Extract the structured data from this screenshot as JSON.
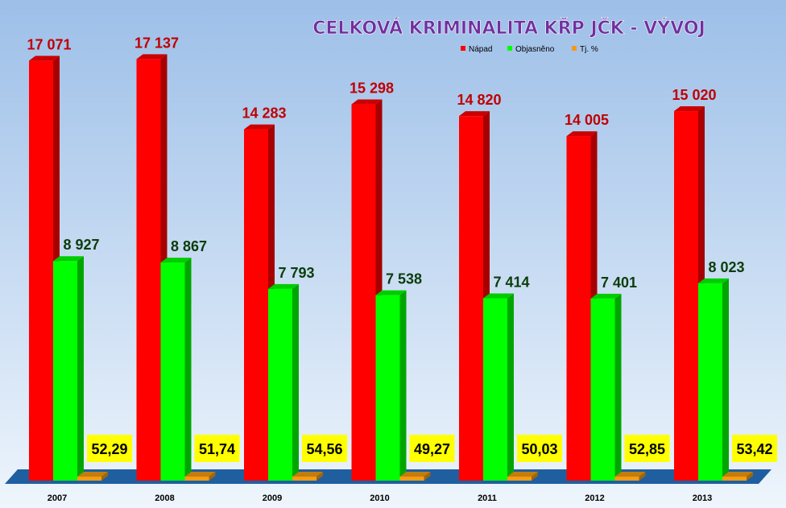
{
  "chart_data": {
    "type": "bar",
    "title": "CELKOVÁ KRIMINALITA KŘP JČK - VÝVOJ",
    "categories": [
      "2007",
      "2008",
      "2009",
      "2010",
      "2011",
      "2012",
      "2013"
    ],
    "series": [
      {
        "name": "Nápad",
        "values": [
          17071,
          17137,
          14283,
          15298,
          14820,
          14005,
          15020
        ],
        "labels": [
          "17 071",
          "17 137",
          "14 283",
          "15 298",
          "14 820",
          "14 005",
          "15 020"
        ],
        "color": "#ff0000",
        "label_color": "#c00000"
      },
      {
        "name": "Objasněno",
        "values": [
          8927,
          8867,
          7793,
          7538,
          7414,
          7401,
          8023
        ],
        "labels": [
          "8 927",
          "8 867",
          "7 793",
          "7 538",
          "7 414",
          "7 401",
          "8 023"
        ],
        "color": "#00ff00",
        "label_color": "#0b3d0b"
      },
      {
        "name": "Tj. %",
        "values": [
          52.29,
          51.74,
          54.56,
          49.27,
          50.03,
          52.85,
          53.42
        ],
        "labels": [
          "52,29",
          "51,74",
          "54,56",
          "49,27",
          "50,03",
          "52,85",
          "53,42"
        ],
        "color": "#f39c12",
        "label_color": "#000000",
        "label_background": "#ffff00"
      }
    ],
    "ylim": [
      0,
      18000
    ],
    "legend": "top-right",
    "grid": false,
    "floor_color": "#1f5fa0"
  }
}
